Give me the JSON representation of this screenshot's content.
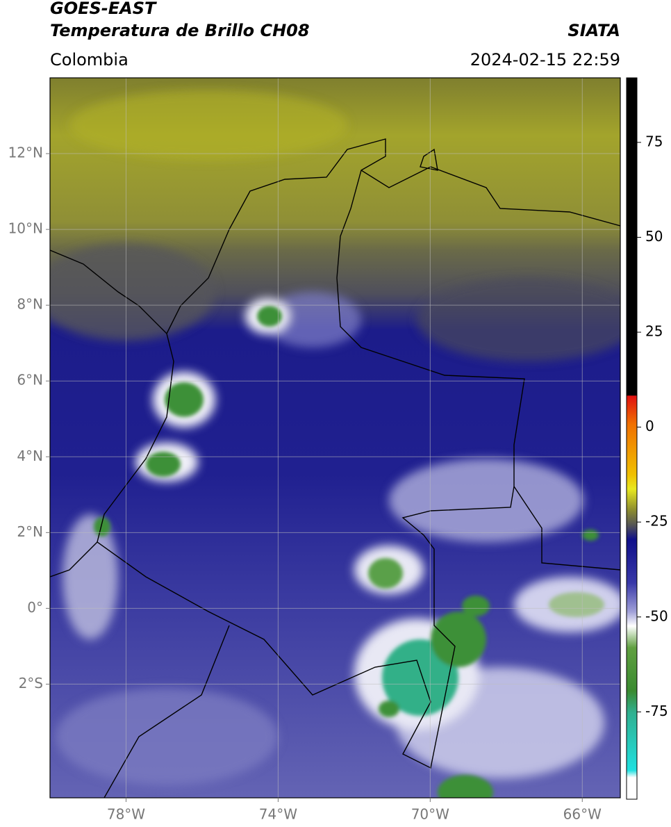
{
  "chart_data": {
    "type": "map",
    "title": "GOES-EAST",
    "subtitle": "Temperatura de Brillo CH08",
    "source": "SIATA",
    "region": "Colombia",
    "timestamp": "2024-02-15 22:59",
    "xlim": [
      -80,
      -65
    ],
    "ylim": [
      -5,
      14
    ],
    "xticks": [
      {
        "value": -78,
        "label": "78°W"
      },
      {
        "value": -74,
        "label": "74°W"
      },
      {
        "value": -70,
        "label": "70°W"
      },
      {
        "value": -66,
        "label": "66°W"
      }
    ],
    "yticks": [
      {
        "value": 12,
        "label": "12°N"
      },
      {
        "value": 10,
        "label": "10°N"
      },
      {
        "value": 8,
        "label": "8°N"
      },
      {
        "value": 6,
        "label": "6°N"
      },
      {
        "value": 4,
        "label": "4°N"
      },
      {
        "value": 2,
        "label": "2°N"
      },
      {
        "value": 0,
        "label": "0°"
      },
      {
        "value": -2,
        "label": "2°S"
      }
    ],
    "grid": true,
    "colorbar": {
      "lim": [
        -98,
        92
      ],
      "ticks": [
        75,
        50,
        25,
        0,
        -25,
        -50,
        -75
      ]
    }
  }
}
